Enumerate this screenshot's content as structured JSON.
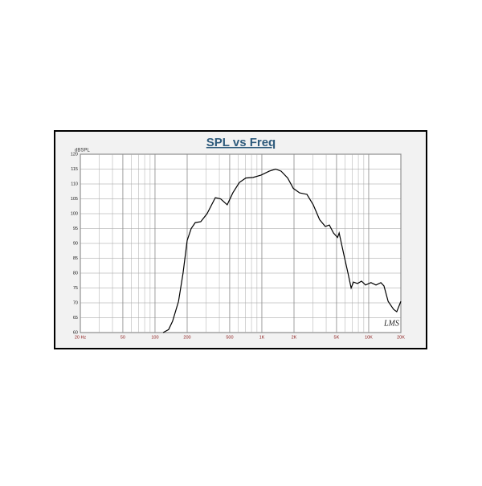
{
  "chart_data": {
    "type": "line",
    "title": "SPL vs Freq",
    "y_label": "dBSPL",
    "annotation": "LMS",
    "x": [
      119,
      134,
      146,
      166,
      183,
      200,
      218,
      238,
      268,
      307,
      367,
      411,
      474,
      535,
      616,
      707,
      829,
      985,
      1172,
      1344,
      1516,
      1744,
      1970,
      2256,
      2640,
      3025,
      3470,
      3924,
      4280,
      4680,
      5110,
      5290,
      5870,
      6400,
      6850,
      7200,
      7850,
      8570,
      9340,
      10500,
      11700,
      13000,
      13900,
      15200,
      17100,
      18300,
      20000
    ],
    "values": [
      60,
      61,
      63.8,
      70.5,
      80,
      91,
      95,
      97,
      97.3,
      100,
      105.4,
      105,
      103,
      107,
      110.5,
      112,
      112.2,
      113,
      114.3,
      115,
      114.3,
      112,
      108.5,
      107,
      106.5,
      103,
      98,
      95.7,
      96.2,
      93.5,
      92,
      93.5,
      86,
      80,
      75,
      77,
      76.5,
      77.3,
      76,
      76.8,
      76,
      76.8,
      75.7,
      70.5,
      67.8,
      67,
      70.5
    ],
    "color": "#000000",
    "xscale": "log",
    "xlim": [
      20,
      20000
    ],
    "ylim": [
      60,
      120
    ],
    "xticks": [
      {
        "value": 20,
        "label": "20 Hz"
      },
      50,
      100,
      200,
      500,
      {
        "value": 1000,
        "label": "1K"
      },
      {
        "value": 2000,
        "label": "2K"
      },
      {
        "value": 5000,
        "label": "5K"
      },
      {
        "value": 10000,
        "label": "10K"
      },
      {
        "value": 20000,
        "label": "20K"
      }
    ],
    "x_minor_ticks": [
      30,
      40,
      60,
      70,
      80,
      90,
      300,
      400,
      600,
      700,
      800,
      900,
      3000,
      4000,
      6000,
      7000,
      8000,
      9000
    ],
    "yticks": [
      60,
      65,
      70,
      75,
      80,
      85,
      90,
      95,
      100,
      105,
      110,
      115,
      120
    ],
    "grid": true
  }
}
